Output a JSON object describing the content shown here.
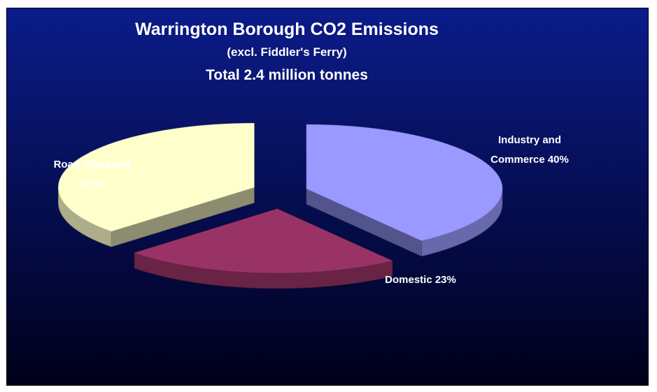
{
  "chart_data": {
    "type": "pie",
    "title": "Warrington Borough CO2 Emissions",
    "subtitle": "(excl. Fiddler's Ferry)",
    "total_label": "Total 2.4 million tonnes",
    "slices": [
      {
        "name": "Industry and Commerce",
        "value": 40,
        "value_label": "40%",
        "color": "#9999ff"
      },
      {
        "name": "Domestic",
        "value": 23,
        "value_label": "23%",
        "color": "#993366"
      },
      {
        "name": "Road Transport",
        "value": 37,
        "value_label": "37%",
        "color": "#ffffcc"
      }
    ],
    "labels": {
      "industry_line1": "Industry and",
      "industry_line2": "Commerce  40%",
      "domestic": "Domestic  23%",
      "road_line1": "Road Transport",
      "road_line2": "37%"
    },
    "style": "3d-exploded",
    "background_gradient": [
      "#0b1c8a",
      "#00001a"
    ]
  }
}
